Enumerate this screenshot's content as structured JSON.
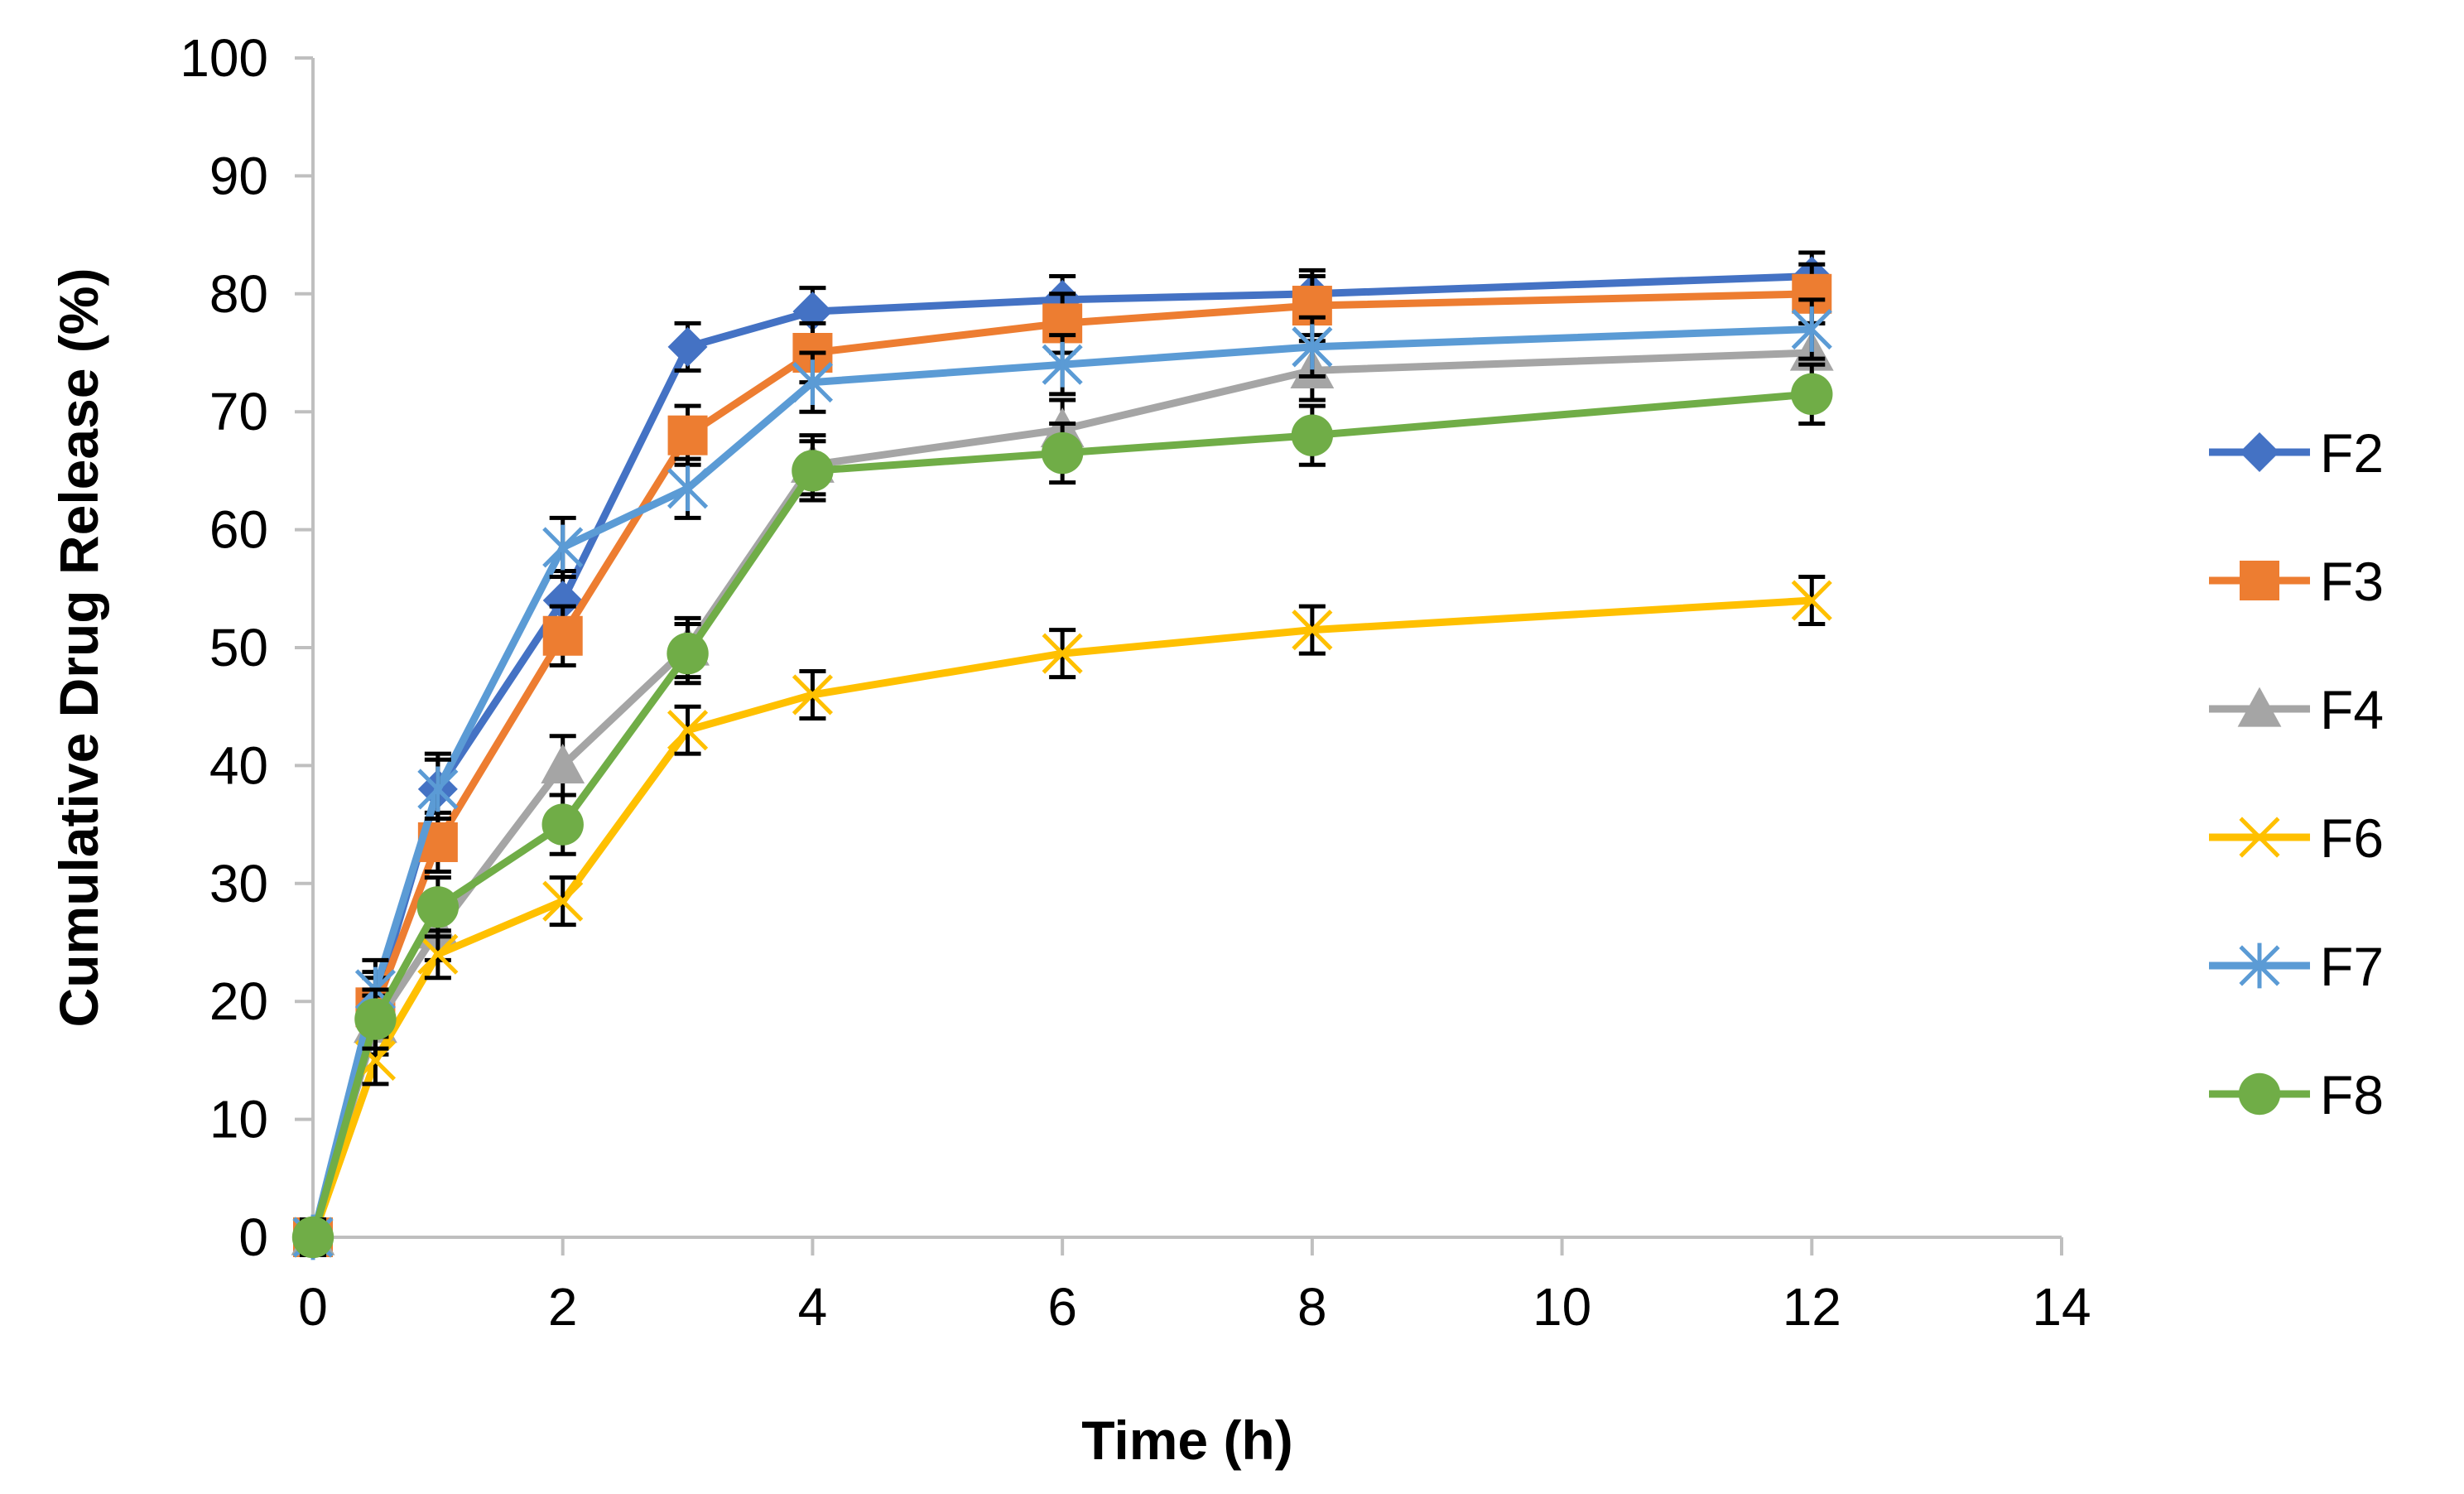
{
  "chart_data": {
    "type": "line",
    "title": "",
    "xlabel": "Time (h)",
    "ylabel": "Cumulative Drug Release (%)",
    "xlim": [
      0,
      14
    ],
    "ylim": [
      0,
      100
    ],
    "xticks": [
      0,
      2,
      4,
      6,
      8,
      10,
      12,
      14
    ],
    "yticks": [
      0,
      10,
      20,
      30,
      40,
      50,
      60,
      70,
      80,
      90,
      100
    ],
    "grid": false,
    "legend_position": "right",
    "x": [
      0,
      0.5,
      1,
      2,
      3,
      4,
      6,
      8,
      12
    ],
    "series": [
      {
        "name": "F2",
        "color": "#4472C4",
        "marker": "diamond",
        "values": [
          0,
          20,
          38,
          54,
          75.5,
          78.5,
          79.5,
          80,
          81.5
        ],
        "errors": [
          1.5,
          2.5,
          3,
          2.5,
          2,
          2,
          2,
          2,
          2
        ]
      },
      {
        "name": "F3",
        "color": "#ED7D31",
        "marker": "square",
        "values": [
          0,
          19.5,
          33.5,
          51,
          68,
          75,
          77.5,
          79,
          80
        ],
        "errors": [
          1.5,
          2.5,
          2.5,
          2.5,
          2.5,
          2.5,
          2.5,
          2.5,
          2.5
        ]
      },
      {
        "name": "F4",
        "color": "#A5A5A5",
        "marker": "triangle",
        "values": [
          0,
          18,
          26,
          40,
          50,
          65.5,
          68.5,
          73.5,
          75
        ],
        "errors": [
          1.5,
          2.5,
          2.5,
          2.5,
          2.5,
          2.5,
          2.5,
          2.5,
          2.5
        ]
      },
      {
        "name": "F6",
        "color": "#FFC000",
        "marker": "x",
        "values": [
          0,
          15,
          24,
          28.5,
          43,
          46,
          49.5,
          51.5,
          54
        ],
        "errors": [
          1.5,
          2,
          2,
          2,
          2,
          2,
          2,
          2,
          2
        ]
      },
      {
        "name": "F7",
        "color": "#5B9BD5",
        "marker": "star",
        "values": [
          0,
          21,
          38,
          58.5,
          63.5,
          72.5,
          74,
          75.5,
          77
        ],
        "errors": [
          1.5,
          2.5,
          2.5,
          2.5,
          2.5,
          2.5,
          2.5,
          2.5,
          2.5
        ]
      },
      {
        "name": "F8",
        "color": "#70AD47",
        "marker": "circle",
        "values": [
          0,
          18.5,
          28,
          35,
          49.5,
          65,
          66.5,
          68,
          71.5
        ],
        "errors": [
          1.5,
          2.5,
          2.5,
          2.5,
          2.5,
          2.5,
          2.5,
          2.5,
          2.5
        ]
      }
    ]
  }
}
